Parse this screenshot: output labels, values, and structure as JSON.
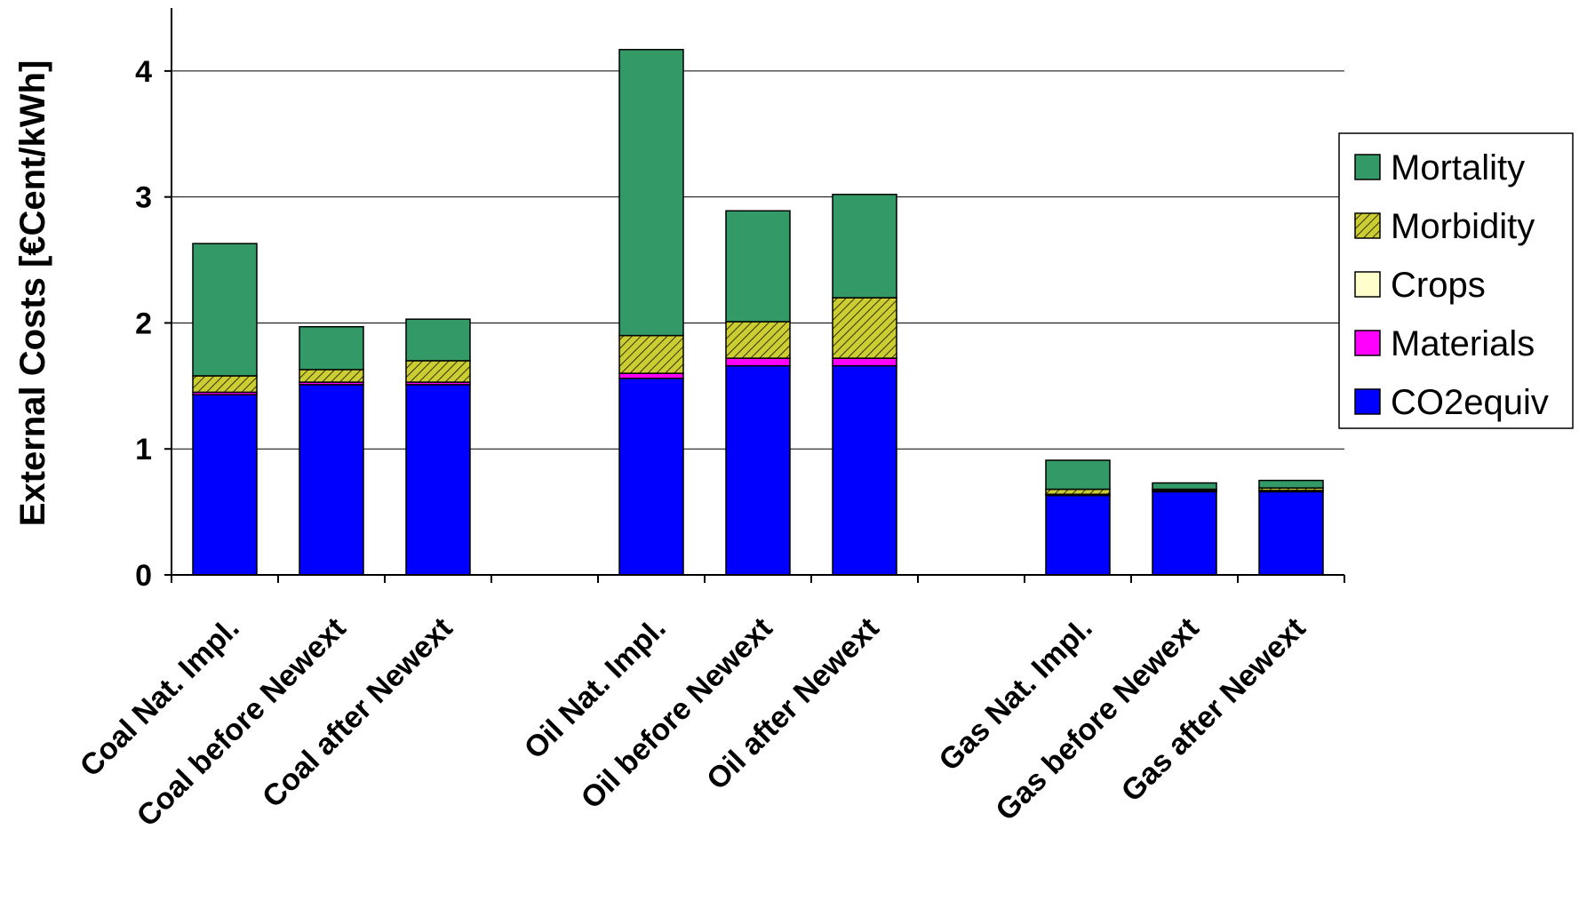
{
  "chart_data": {
    "type": "bar",
    "stacked": true,
    "ylabel": "External Costs [€Cent/kWh]",
    "ylim": [
      0,
      4.5
    ],
    "yticks": [
      0,
      1,
      2,
      3,
      4
    ],
    "grid": true,
    "legend_position": "right",
    "categories": [
      "Coal Nat. Impl.",
      "Coal before Newext",
      "Coal after Newext",
      "",
      "Oil Nat. Impl.",
      "Oil before Newext",
      "Oil after Newext",
      "",
      "Gas Nat. Impl.",
      "Gas before Newext",
      "Gas after Newext"
    ],
    "series": [
      {
        "name": "CO2equiv",
        "color": "#0000ff",
        "pattern": "solid",
        "values": [
          1.43,
          1.51,
          1.51,
          0,
          1.56,
          1.66,
          1.66,
          0,
          0.63,
          0.66,
          0.66
        ]
      },
      {
        "name": "Materials",
        "color": "#ff00ff",
        "pattern": "solid",
        "values": [
          0.02,
          0.02,
          0.02,
          0,
          0.04,
          0.06,
          0.06,
          0,
          0.01,
          0.01,
          0.01
        ]
      },
      {
        "name": "Crops",
        "color": "#ffffcc",
        "pattern": "solid",
        "values": [
          0.0,
          0.0,
          0.0,
          0,
          0.0,
          0.0,
          0.0,
          0,
          0.0,
          0.0,
          0.0
        ]
      },
      {
        "name": "Morbidity",
        "color": "#cccc33",
        "pattern": "hatch",
        "values": [
          0.13,
          0.1,
          0.17,
          0,
          0.3,
          0.29,
          0.48,
          0,
          0.04,
          0.01,
          0.02
        ]
      },
      {
        "name": "Mortality",
        "color": "#339966",
        "pattern": "solid",
        "values": [
          1.05,
          0.34,
          0.33,
          0,
          2.27,
          0.88,
          0.82,
          0,
          0.23,
          0.05,
          0.06
        ]
      }
    ],
    "legend_order": [
      "Mortality",
      "Morbidity",
      "Crops",
      "Materials",
      "CO2equiv"
    ]
  }
}
